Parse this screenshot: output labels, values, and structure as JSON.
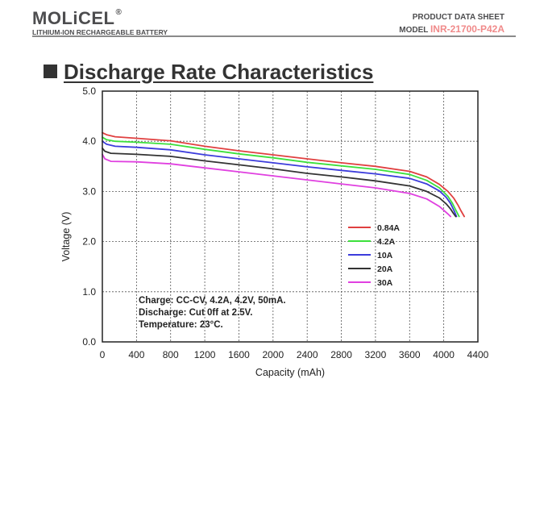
{
  "header": {
    "brand": "MOLiCEL",
    "brand_mark": "®",
    "tagline": "LITHIUM-ION RECHARGEABLE BATTERY",
    "doc_type": "PRODUCT DATA SHEET",
    "model_label": "MODEL",
    "model_number": "INR-21700-P42A"
  },
  "section": {
    "title": "Discharge Rate Characteristics"
  },
  "chart_data": {
    "type": "line",
    "xlabel": "Capacity (mAh)",
    "ylabel": "Voltage (V)",
    "xlim": [
      0,
      4400
    ],
    "ylim": [
      0,
      5.0
    ],
    "x_ticks": [
      "0",
      "400",
      "800",
      "1200",
      "1600",
      "2000",
      "2400",
      "2800",
      "3200",
      "3600",
      "4000",
      "4400"
    ],
    "y_ticks": [
      "0.0",
      "1.0",
      "2.0",
      "3.0",
      "4.0",
      "5.0"
    ],
    "grid": true,
    "legend_position": "center-right",
    "annotations": [
      "Charge: CC-CV, 4.2A, 4.2V, 50mA.",
      "Discharge: Cut 0ff at 2.5V.",
      "Temperature: 23°C."
    ],
    "series": [
      {
        "name": "0.84A",
        "color": "#e04040",
        "x": [
          0,
          50,
          150,
          400,
          800,
          1200,
          1600,
          2000,
          2400,
          2800,
          3200,
          3600,
          3800,
          3950,
          4050,
          4120,
          4170,
          4200,
          4240
        ],
        "y": [
          4.17,
          4.13,
          4.09,
          4.06,
          4.01,
          3.9,
          3.81,
          3.73,
          3.65,
          3.57,
          3.5,
          3.4,
          3.29,
          3.14,
          3.0,
          2.86,
          2.72,
          2.62,
          2.5
        ]
      },
      {
        "name": "4.2A",
        "color": "#3ce03c",
        "x": [
          0,
          50,
          150,
          400,
          800,
          1200,
          1600,
          2000,
          2400,
          2800,
          3200,
          3600,
          3800,
          3950,
          4050,
          4100,
          4140,
          4180
        ],
        "y": [
          4.08,
          4.03,
          4.0,
          3.98,
          3.94,
          3.84,
          3.75,
          3.67,
          3.58,
          3.51,
          3.44,
          3.34,
          3.22,
          3.07,
          2.9,
          2.77,
          2.63,
          2.5
        ]
      },
      {
        "name": "10A",
        "color": "#3c3cdc",
        "x": [
          0,
          50,
          150,
          400,
          800,
          1200,
          1600,
          2000,
          2400,
          2800,
          3200,
          3600,
          3800,
          3950,
          4030,
          4080,
          4120,
          4150
        ],
        "y": [
          4.0,
          3.94,
          3.9,
          3.88,
          3.83,
          3.73,
          3.65,
          3.57,
          3.49,
          3.42,
          3.35,
          3.26,
          3.15,
          3.01,
          2.88,
          2.76,
          2.62,
          2.5
        ]
      },
      {
        "name": "20A",
        "color": "#333333",
        "x": [
          0,
          30,
          100,
          400,
          800,
          1200,
          1600,
          2000,
          2400,
          2800,
          3200,
          3600,
          3800,
          3950,
          4030,
          4080,
          4110,
          4140
        ],
        "y": [
          3.86,
          3.8,
          3.76,
          3.74,
          3.7,
          3.61,
          3.53,
          3.45,
          3.36,
          3.29,
          3.21,
          3.11,
          3.0,
          2.87,
          2.75,
          2.65,
          2.57,
          2.5
        ]
      },
      {
        "name": "30A",
        "color": "#e040e0",
        "x": [
          0,
          30,
          100,
          400,
          800,
          1200,
          1600,
          2000,
          2400,
          2800,
          3200,
          3600,
          3800,
          3950,
          4010,
          4050,
          4080
        ],
        "y": [
          3.74,
          3.65,
          3.6,
          3.59,
          3.55,
          3.47,
          3.39,
          3.31,
          3.23,
          3.15,
          3.07,
          2.96,
          2.85,
          2.7,
          2.61,
          2.55,
          2.5
        ]
      }
    ]
  }
}
